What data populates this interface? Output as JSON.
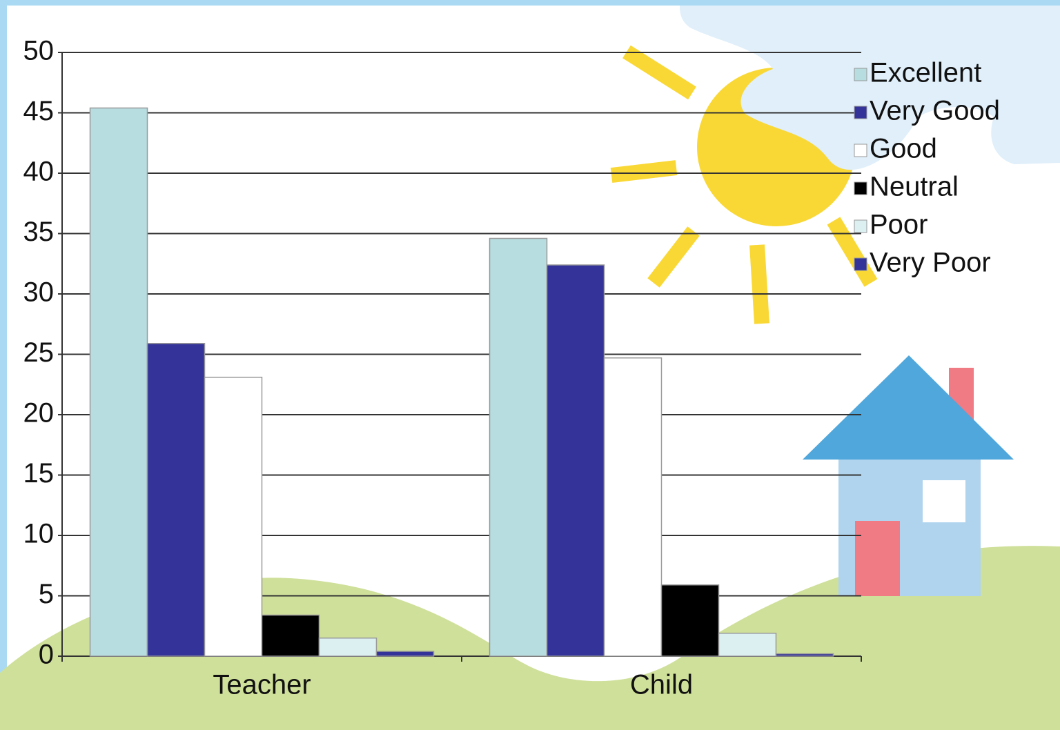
{
  "chart_data": {
    "type": "bar",
    "categories": [
      "Teacher",
      "Child"
    ],
    "series": [
      {
        "name": "Excellent",
        "color": "#b7dde0",
        "values": [
          45.4,
          34.6
        ]
      },
      {
        "name": "Very Good",
        "color": "#333399",
        "values": [
          25.9,
          32.4
        ]
      },
      {
        "name": "Good",
        "color": "#ffffff",
        "values": [
          23.1,
          24.7
        ]
      },
      {
        "name": "Neutral",
        "color": "#000000",
        "values": [
          3.4,
          5.9
        ]
      },
      {
        "name": "Poor",
        "color": "#dcf0f2",
        "values": [
          1.5,
          1.9
        ]
      },
      {
        "name": "Very Poor",
        "color": "#333399",
        "values": [
          0.4,
          0.2
        ]
      }
    ],
    "ylim": [
      0,
      50
    ],
    "yticks": [
      0,
      5,
      10,
      15,
      20,
      25,
      30,
      35,
      40,
      45,
      50
    ],
    "grid": true,
    "legend": "right"
  }
}
